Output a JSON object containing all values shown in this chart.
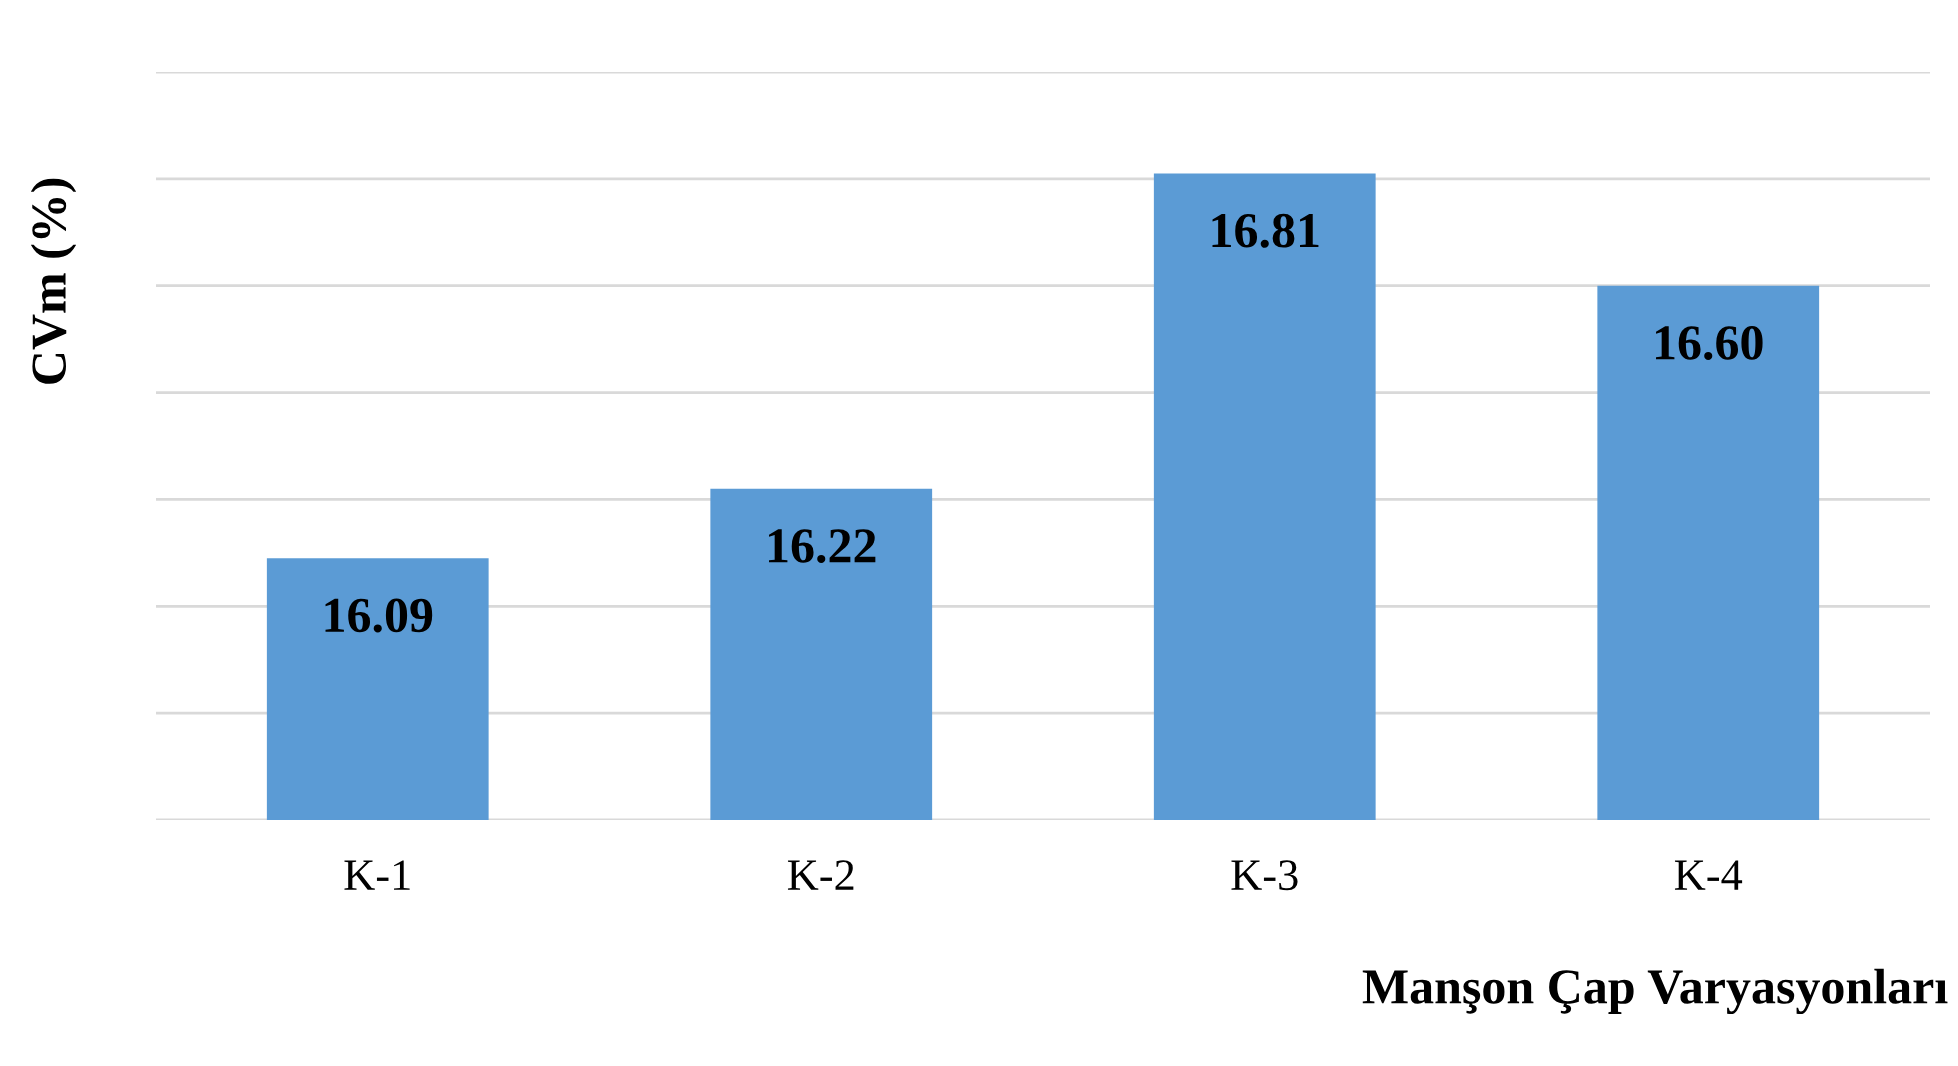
{
  "chart_data": {
    "type": "bar",
    "xlabel": "Manşon Çap Varyasyonları",
    "ylabel": "CVm (%)",
    "categories": [
      "K-1",
      "K-2",
      "K-3",
      "K-4"
    ],
    "values": [
      16.09,
      16.22,
      16.81,
      16.6
    ],
    "color": "#5b9bd5",
    "ylim": [
      15.6,
      17.0
    ],
    "yticks": [
      {
        "value": 15.6,
        "label": null
      },
      {
        "value": 15.8,
        "label": null
      },
      {
        "value": 16.0,
        "label": null
      },
      {
        "value": 16.2,
        "label": null
      },
      {
        "value": 16.4,
        "label": null
      },
      {
        "value": 16.6,
        "label": null
      },
      {
        "value": 16.8,
        "label": null
      },
      {
        "value": 17.0,
        "label": null
      }
    ],
    "value_labels": [
      "16.09",
      "16.22",
      "16.81",
      "16.60"
    ],
    "tick_labels": "x",
    "grid": "y",
    "legend": false
  }
}
